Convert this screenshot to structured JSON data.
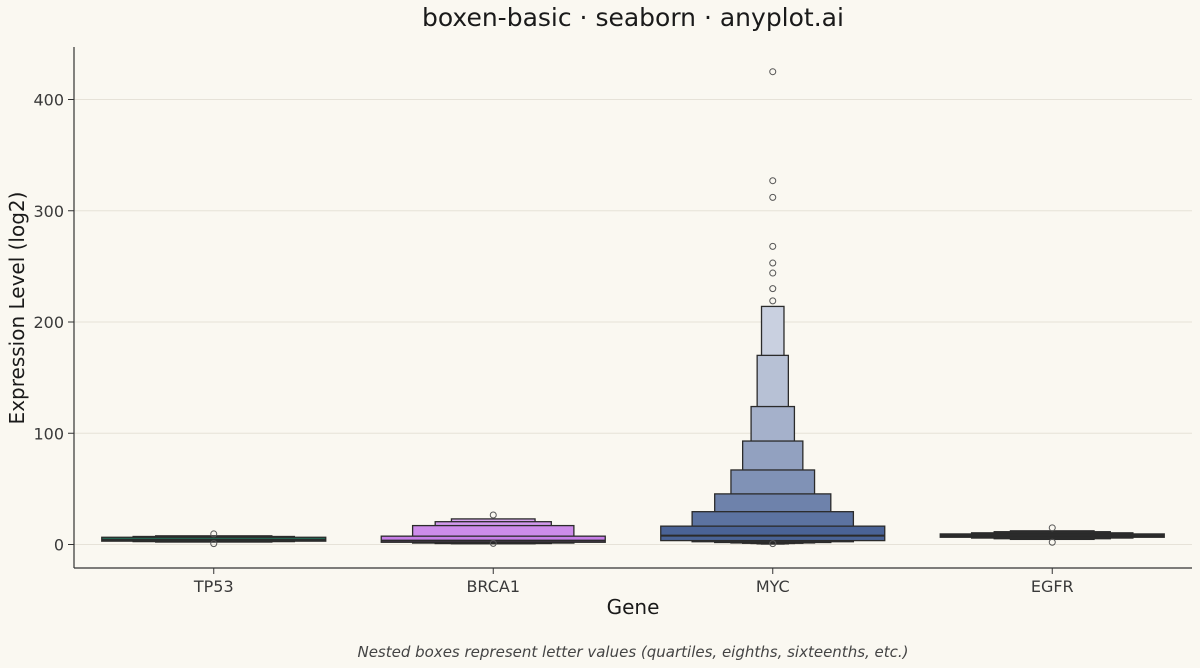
{
  "chart_data": {
    "type": "boxen",
    "title": "boxen-basic · seaborn · anyplot.ai",
    "xlabel": "Gene",
    "ylabel": "Expression Level (log2)",
    "caption": "Nested boxes represent letter values (quartiles, eighths, sixteenths, etc.)",
    "ylim": [
      -20,
      445
    ],
    "yticks": [
      0,
      100,
      200,
      300,
      400
    ],
    "grid": "y",
    "categories": [
      "TP53",
      "BRCA1",
      "MYC",
      "EGFR"
    ],
    "series": [
      {
        "name": "TP53",
        "color": "#1A9E77",
        "median": 4.5,
        "boxes": [
          [
            3,
            6.5
          ],
          [
            2.6,
            7.2
          ],
          [
            2.2,
            7.8
          ]
        ],
        "outliers": [
          9.5,
          0.8
        ]
      },
      {
        "name": "BRCA1",
        "color": "#C77FE8",
        "median": 3.5,
        "boxes": [
          [
            2,
            7.5
          ],
          [
            1.3,
            17
          ],
          [
            0.9,
            20.5
          ],
          [
            0.7,
            23
          ]
        ],
        "outliers": [
          26.5,
          1.0
        ]
      },
      {
        "name": "MYC",
        "color": "#4A6396",
        "median": 8,
        "boxes": [
          [
            3.5,
            16.5
          ],
          [
            2.5,
            29.5
          ],
          [
            1.8,
            45.5
          ],
          [
            1.4,
            67
          ],
          [
            1.1,
            93
          ],
          [
            0.9,
            124
          ],
          [
            0.6,
            170
          ],
          [
            0.4,
            214
          ]
        ],
        "outliers": [
          425,
          327,
          312,
          268,
          253,
          244,
          230,
          219,
          0.8
        ]
      },
      {
        "name": "EGFR",
        "color": "#2E2E2E",
        "median": 8,
        "boxes": [
          [
            6.5,
            9.5
          ],
          [
            5.8,
            10.5
          ],
          [
            5.2,
            11.5
          ],
          [
            4.6,
            12.3
          ]
        ],
        "outliers": [
          15,
          2
        ]
      }
    ]
  }
}
